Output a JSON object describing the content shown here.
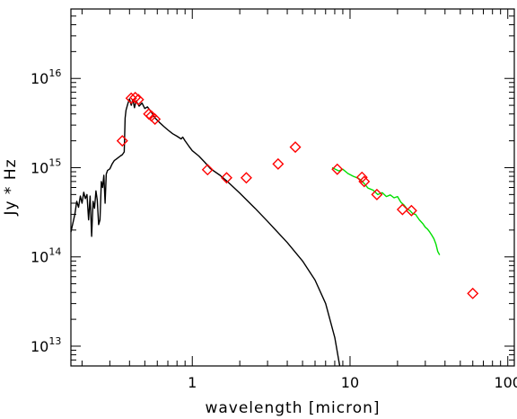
{
  "chart_data": {
    "type": "line",
    "xlabel": "wavelength [micron]",
    "ylabel": "Jy * Hz",
    "xscale": "log",
    "yscale": "log",
    "xlim": [
      0.17,
      110
    ],
    "ylim": [
      6000000000000.0,
      6e+16
    ],
    "grid": false,
    "x_tick_labels": [
      {
        "value": 1,
        "label": "1"
      },
      {
        "value": 10,
        "label": "10"
      },
      {
        "value": 100,
        "label": "100"
      }
    ],
    "y_tick_labels": [
      {
        "value": 10000000000000.0,
        "mantissa": "10",
        "exponent": "13"
      },
      {
        "value": 100000000000000.0,
        "mantissa": "10",
        "exponent": "14"
      },
      {
        "value": 1000000000000000.0,
        "mantissa": "10",
        "exponent": "15"
      },
      {
        "value": 1e+16,
        "mantissa": "10",
        "exponent": "16"
      }
    ],
    "series": [
      {
        "style": "line",
        "color": "#000000",
        "points": [
          [
            0.17,
            190000000000000.0
          ],
          [
            0.18,
            300000000000000.0
          ],
          [
            0.185,
            420000000000000.0
          ],
          [
            0.19,
            360000000000000.0
          ],
          [
            0.195,
            480000000000000.0
          ],
          [
            0.2,
            400000000000000.0
          ],
          [
            0.205,
            530000000000000.0
          ],
          [
            0.21,
            450000000000000.0
          ],
          [
            0.215,
            500000000000000.0
          ],
          [
            0.22,
            260000000000000.0
          ],
          [
            0.225,
            480000000000000.0
          ],
          [
            0.23,
            170000000000000.0
          ],
          [
            0.235,
            420000000000000.0
          ],
          [
            0.24,
            350000000000000.0
          ],
          [
            0.245,
            550000000000000.0
          ],
          [
            0.25,
            430000000000000.0
          ],
          [
            0.255,
            230000000000000.0
          ],
          [
            0.26,
            260000000000000.0
          ],
          [
            0.265,
            700000000000000.0
          ],
          [
            0.27,
            600000000000000.0
          ],
          [
            0.275,
            820000000000000.0
          ],
          [
            0.28,
            400000000000000.0
          ],
          [
            0.285,
            850000000000000.0
          ],
          [
            0.29,
            930000000000000.0
          ],
          [
            0.3,
            970000000000000.0
          ],
          [
            0.31,
            1100000000000000.0
          ],
          [
            0.32,
            1200000000000000.0
          ],
          [
            0.33,
            1250000000000000.0
          ],
          [
            0.34,
            1300000000000000.0
          ],
          [
            0.35,
            1350000000000000.0
          ],
          [
            0.36,
            1400000000000000.0
          ],
          [
            0.37,
            1500000000000000.0
          ],
          [
            0.375,
            3600000000000000.0
          ],
          [
            0.38,
            4400000000000000.0
          ],
          [
            0.39,
            5200000000000000.0
          ],
          [
            0.4,
            5900000000000000.0
          ],
          [
            0.41,
            5000000000000000.0
          ],
          [
            0.42,
            5800000000000000.0
          ],
          [
            0.43,
            4700000000000000.0
          ],
          [
            0.44,
            5600000000000000.0
          ],
          [
            0.46,
            4900000000000000.0
          ],
          [
            0.48,
            5300000000000000.0
          ],
          [
            0.5,
            4600000000000000.0
          ],
          [
            0.52,
            4800000000000000.0
          ],
          [
            0.55,
            4200000000000000.0
          ],
          [
            0.58,
            3600000000000000.0
          ],
          [
            0.62,
            3200000000000000.0
          ],
          [
            0.66,
            2900000000000000.0
          ],
          [
            0.7,
            2650000000000000.0
          ],
          [
            0.75,
            2400000000000000.0
          ],
          [
            0.8,
            2250000000000000.0
          ],
          [
            0.85,
            2100000000000000.0
          ],
          [
            0.87,
            2200000000000000.0
          ],
          [
            0.9,
            2000000000000000.0
          ],
          [
            0.95,
            1750000000000000.0
          ],
          [
            1.0,
            1550000000000000.0
          ],
          [
            1.1,
            1350000000000000.0
          ],
          [
            1.2,
            1150000000000000.0
          ],
          [
            1.3,
            980000000000000.0
          ],
          [
            1.5,
            820000000000000.0
          ],
          [
            1.7,
            680000000000000.0
          ],
          [
            2.0,
            520000000000000.0
          ],
          [
            2.5,
            350000000000000.0
          ],
          [
            3.0,
            250000000000000.0
          ],
          [
            4.0,
            145000000000000.0
          ],
          [
            5.0,
            90000000000000.0
          ],
          [
            6.0,
            55000000000000.0
          ],
          [
            7.0,
            30000000000000.0
          ],
          [
            8.0,
            12500000000000.0
          ],
          [
            8.6,
            6000000000000.0
          ]
        ]
      },
      {
        "style": "line",
        "color": "#00e000",
        "points": [
          [
            7.7,
            1000000000000000.0
          ],
          [
            8.5,
            920000000000000.0
          ],
          [
            9.0,
            960000000000000.0
          ],
          [
            9.7,
            860000000000000.0
          ],
          [
            10.5,
            800000000000000.0
          ],
          [
            11.3,
            760000000000000.0
          ],
          [
            12.0,
            700000000000000.0
          ],
          [
            13.0,
            590000000000000.0
          ],
          [
            14.0,
            560000000000000.0
          ],
          [
            15.0,
            500000000000000.0
          ],
          [
            16.0,
            525000000000000.0
          ],
          [
            17.0,
            475000000000000.0
          ],
          [
            18.0,
            495000000000000.0
          ],
          [
            19.0,
            460000000000000.0
          ],
          [
            20.0,
            475000000000000.0
          ],
          [
            21.0,
            410000000000000.0
          ],
          [
            22.0,
            380000000000000.0
          ],
          [
            23.0,
            345000000000000.0
          ],
          [
            24.0,
            330000000000000.0
          ],
          [
            25.0,
            305000000000000.0
          ],
          [
            26.0,
            300000000000000.0
          ],
          [
            27.5,
            260000000000000.0
          ],
          [
            29.0,
            235000000000000.0
          ],
          [
            30.0,
            215000000000000.0
          ],
          [
            31.0,
            205000000000000.0
          ],
          [
            32.0,
            190000000000000.0
          ],
          [
            33.0,
            175000000000000.0
          ],
          [
            34.0,
            160000000000000.0
          ],
          [
            35.0,
            140000000000000.0
          ],
          [
            36.0,
            115000000000000.0
          ],
          [
            37.0,
            105000000000000.0
          ]
        ]
      },
      {
        "style": "markers",
        "marker": "diamond",
        "color": "#ff0000",
        "points": [
          [
            0.36,
            2000000000000000.0
          ],
          [
            0.41,
            6000000000000000.0
          ],
          [
            0.435,
            6100000000000000.0
          ],
          [
            0.455,
            5800000000000000.0
          ],
          [
            0.53,
            4000000000000000.0
          ],
          [
            0.55,
            3800000000000000.0
          ],
          [
            0.58,
            3500000000000000.0
          ],
          [
            1.25,
            950000000000000.0
          ],
          [
            1.65,
            770000000000000.0
          ],
          [
            2.2,
            770000000000000.0
          ],
          [
            3.5,
            1100000000000000.0
          ],
          [
            4.5,
            1700000000000000.0
          ],
          [
            8.3,
            960000000000000.0
          ],
          [
            11.9,
            780000000000000.0
          ],
          [
            12.3,
            700000000000000.0
          ],
          [
            14.8,
            500000000000000.0
          ],
          [
            21.5,
            340000000000000.0
          ],
          [
            24.5,
            330000000000000.0
          ],
          [
            60.0,
            39000000000000.0
          ]
        ]
      }
    ]
  }
}
